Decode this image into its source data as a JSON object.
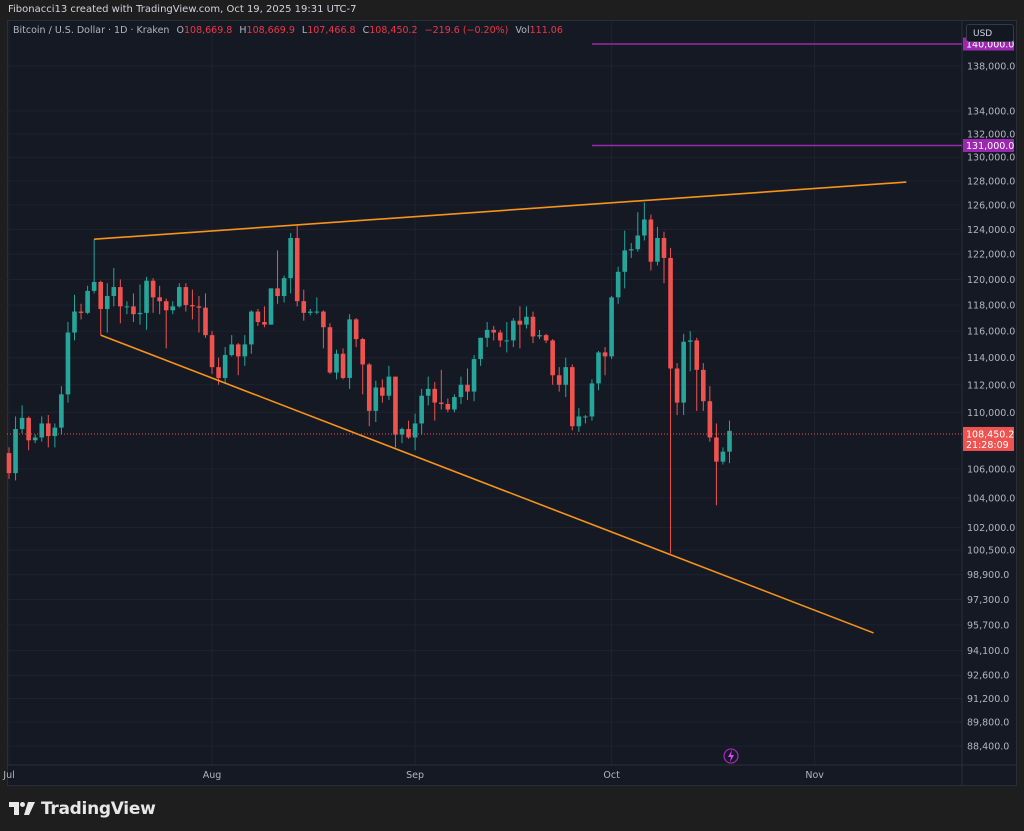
{
  "header": {
    "attribution": "Fibonacci13 created with TradingView.com, Oct 19, 2025 19:31 UTC-7"
  },
  "legend": {
    "symbol": "Bitcoin / U.S. Dollar · 1D · Kraken",
    "o_label": "O",
    "o": "108,669.8",
    "h_label": "H",
    "h": "108,669.9",
    "l_label": "L",
    "l": "107,466.8",
    "c_label": "C",
    "c": "108,450.2",
    "change": "−219.6 (−0.20%)",
    "vol_label": "Vol",
    "vol": "111.06"
  },
  "currency_button": "USD",
  "branding": {
    "logo_text": "TradingView"
  },
  "colors": {
    "up": "#26a69a",
    "down": "#ef5350",
    "trendline": "#f7931a",
    "level": "#9c27b0",
    "background": "#151924"
  },
  "chart_data": {
    "type": "candlestick",
    "title": "",
    "scale": "log",
    "grid": true,
    "ylim": [
      87600,
      140800
    ],
    "xlim": [
      "2025-06-30",
      "2025-11-24"
    ],
    "price_ticks": [
      "138,000.0",
      "134,000.0",
      "132,000.0",
      "130,000.0",
      "128,000.0",
      "126,000.0",
      "124,000.0",
      "122,000.0",
      "120,000.0",
      "118,000.0",
      "116,000.0",
      "114,000.0",
      "112,000.0",
      "110,000.0",
      "106,000.0",
      "104,000.0",
      "102,000.0",
      "100,500.0",
      "98,900.0",
      "97,300.0",
      "95,700.0",
      "94,100.0",
      "92,600.0",
      "91,200.0",
      "89,800.0",
      "88,400.0"
    ],
    "time_ticks": [
      {
        "label": "Jul",
        "date": "2025-07-01"
      },
      {
        "label": "Aug",
        "date": "2025-08-01"
      },
      {
        "label": "Sep",
        "date": "2025-09-01"
      },
      {
        "label": "Oct",
        "date": "2025-10-01"
      },
      {
        "label": "Nov",
        "date": "2025-11-01"
      }
    ],
    "last_price": {
      "value": 108450.2,
      "label": "108,450.2",
      "countdown": "21:28:09"
    },
    "horizontal_levels": [
      {
        "value": 140000,
        "label": "140,000.0",
        "from": "2025-09-28"
      },
      {
        "value": 131000,
        "label": "131,000.0",
        "from": "2025-09-28"
      }
    ],
    "trendlines": [
      {
        "from": {
          "date": "2025-07-14",
          "price": 123200
        },
        "to": {
          "date": "2025-11-15",
          "price": 127900
        }
      },
      {
        "from": {
          "date": "2025-07-15",
          "price": 115700
        },
        "to": {
          "date": "2025-11-10",
          "price": 95200
        }
      }
    ],
    "candles": [
      [
        "2025-07-01",
        107100,
        107500,
        105300,
        105700
      ],
      [
        "2025-07-02",
        105700,
        109700,
        105200,
        108800
      ],
      [
        "2025-07-03",
        108800,
        110500,
        108500,
        109600
      ],
      [
        "2025-07-04",
        109600,
        109700,
        107300,
        108000
      ],
      [
        "2025-07-05",
        108000,
        108400,
        107800,
        108200
      ],
      [
        "2025-07-06",
        108200,
        109700,
        107900,
        109200
      ],
      [
        "2025-07-07",
        109200,
        109800,
        107500,
        108300
      ],
      [
        "2025-07-08",
        108300,
        109200,
        107500,
        108900
      ],
      [
        "2025-07-09",
        108900,
        111900,
        108400,
        111300
      ],
      [
        "2025-07-10",
        111300,
        116700,
        110700,
        115900
      ],
      [
        "2025-07-11",
        115900,
        118800,
        115300,
        117500
      ],
      [
        "2025-07-12",
        117500,
        118100,
        116900,
        117400
      ],
      [
        "2025-07-13",
        117400,
        119500,
        117300,
        119100
      ],
      [
        "2025-07-14",
        119100,
        123200,
        118900,
        119800
      ],
      [
        "2025-07-15",
        119800,
        119900,
        115700,
        117700
      ],
      [
        "2025-07-16",
        117700,
        119700,
        115900,
        118700
      ],
      [
        "2025-07-17",
        118700,
        120900,
        117900,
        119400
      ],
      [
        "2025-07-18",
        119400,
        120000,
        116600,
        117900
      ],
      [
        "2025-07-19",
        117900,
        118300,
        117300,
        117900
      ],
      [
        "2025-07-20",
        117900,
        118900,
        116700,
        117300
      ],
      [
        "2025-07-21",
        117300,
        119600,
        116500,
        117400
      ],
      [
        "2025-07-22",
        117400,
        120200,
        116100,
        119900
      ],
      [
        "2025-07-23",
        119900,
        120100,
        117400,
        118600
      ],
      [
        "2025-07-24",
        118600,
        119500,
        117300,
        118300
      ],
      [
        "2025-07-25",
        118300,
        118500,
        114700,
        117600
      ],
      [
        "2025-07-26",
        117600,
        118300,
        117300,
        117900
      ],
      [
        "2025-07-27",
        117900,
        119700,
        117800,
        119400
      ],
      [
        "2025-07-28",
        119400,
        119700,
        117500,
        118000
      ],
      [
        "2025-07-29",
        118000,
        119200,
        116900,
        117900
      ],
      [
        "2025-07-30",
        117900,
        118700,
        115900,
        117800
      ],
      [
        "2025-07-31",
        117800,
        118900,
        115500,
        115700
      ],
      [
        "2025-08-01",
        115700,
        116000,
        112800,
        113300
      ],
      [
        "2025-08-02",
        113300,
        114000,
        112000,
        112500
      ],
      [
        "2025-08-03",
        112500,
        114800,
        112100,
        114200
      ],
      [
        "2025-08-04",
        114200,
        115700,
        114100,
        115000
      ],
      [
        "2025-08-05",
        115000,
        115100,
        112700,
        114100
      ],
      [
        "2025-08-06",
        114100,
        115700,
        113400,
        115000
      ],
      [
        "2025-08-07",
        115000,
        117600,
        114300,
        117500
      ],
      [
        "2025-08-08",
        117500,
        117700,
        116400,
        116700
      ],
      [
        "2025-08-09",
        116700,
        117900,
        116300,
        116500
      ],
      [
        "2025-08-10",
        116500,
        119300,
        116500,
        119300
      ],
      [
        "2025-08-11",
        119300,
        122300,
        118100,
        118700
      ],
      [
        "2025-08-12",
        118700,
        120300,
        118200,
        120100
      ],
      [
        "2025-08-13",
        120100,
        123700,
        118900,
        123300
      ],
      [
        "2025-08-14",
        123300,
        124300,
        117900,
        118300
      ],
      [
        "2025-08-15",
        118300,
        119200,
        116800,
        117400
      ],
      [
        "2025-08-16",
        117400,
        117700,
        117200,
        117500
      ],
      [
        "2025-08-17",
        117500,
        118600,
        117300,
        117500
      ],
      [
        "2025-08-18",
        117500,
        117600,
        114700,
        116300
      ],
      [
        "2025-08-19",
        116300,
        116600,
        112800,
        112900
      ],
      [
        "2025-08-20",
        112900,
        114600,
        112400,
        114300
      ],
      [
        "2025-08-21",
        114300,
        114700,
        112400,
        112500
      ],
      [
        "2025-08-22",
        112500,
        117300,
        111700,
        116900
      ],
      [
        "2025-08-23",
        116900,
        117000,
        114800,
        115400
      ],
      [
        "2025-08-24",
        115400,
        115500,
        111300,
        113500
      ],
      [
        "2025-08-25",
        113500,
        113600,
        109000,
        110100
      ],
      [
        "2025-08-26",
        110100,
        112300,
        109300,
        111800
      ],
      [
        "2025-08-27",
        111800,
        112400,
        110700,
        111200
      ],
      [
        "2025-08-28",
        111200,
        113400,
        110900,
        112600
      ],
      [
        "2025-08-29",
        112600,
        112600,
        107500,
        108400
      ],
      [
        "2025-08-30",
        108400,
        108900,
        107800,
        108800
      ],
      [
        "2025-08-31",
        108800,
        109400,
        108100,
        108200
      ],
      [
        "2025-09-01",
        108200,
        109900,
        107300,
        109200
      ],
      [
        "2025-09-02",
        109200,
        111700,
        108400,
        111200
      ],
      [
        "2025-09-03",
        111200,
        112600,
        110500,
        111700
      ],
      [
        "2025-09-04",
        111700,
        112200,
        109400,
        110700
      ],
      [
        "2025-09-05",
        110700,
        113100,
        110200,
        110600
      ],
      [
        "2025-09-06",
        110600,
        111000,
        110000,
        110200
      ],
      [
        "2025-09-07",
        110200,
        111300,
        110000,
        111100
      ],
      [
        "2025-09-08",
        111100,
        112600,
        110600,
        112000
      ],
      [
        "2025-09-09",
        112000,
        113200,
        110900,
        111500
      ],
      [
        "2025-09-10",
        111500,
        114200,
        110800,
        113900
      ],
      [
        "2025-09-11",
        113900,
        115500,
        113400,
        115500
      ],
      [
        "2025-09-12",
        115500,
        116700,
        114800,
        116100
      ],
      [
        "2025-09-13",
        116100,
        116400,
        115300,
        115900
      ],
      [
        "2025-09-14",
        115900,
        116100,
        114800,
        115300
      ],
      [
        "2025-09-15",
        115300,
        116700,
        114400,
        115300
      ],
      [
        "2025-09-16",
        115300,
        117000,
        114800,
        116800
      ],
      [
        "2025-09-17",
        116800,
        117900,
        114700,
        116500
      ],
      [
        "2025-09-18",
        116500,
        117900,
        116200,
        117100
      ],
      [
        "2025-09-19",
        117100,
        117500,
        115100,
        115600
      ],
      [
        "2025-09-20",
        115600,
        116100,
        115400,
        115700
      ],
      [
        "2025-09-21",
        115700,
        115800,
        115100,
        115300
      ],
      [
        "2025-09-22",
        115300,
        115400,
        112000,
        112700
      ],
      [
        "2025-09-23",
        112700,
        113300,
        111500,
        112000
      ],
      [
        "2025-09-24",
        112000,
        114000,
        111100,
        113300
      ],
      [
        "2025-09-25",
        113300,
        113500,
        108700,
        109000
      ],
      [
        "2025-09-26",
        109000,
        110300,
        108600,
        109700
      ],
      [
        "2025-09-27",
        109700,
        109800,
        109200,
        109700
      ],
      [
        "2025-09-28",
        109700,
        112400,
        109400,
        112100
      ],
      [
        "2025-09-29",
        112100,
        114500,
        111600,
        114400
      ],
      [
        "2025-09-30",
        114400,
        114800,
        112700,
        114100
      ],
      [
        "2025-10-01",
        114100,
        118700,
        113900,
        118600
      ],
      [
        "2025-10-02",
        118600,
        121000,
        118100,
        120600
      ],
      [
        "2025-10-03",
        120600,
        123900,
        119300,
        122300
      ],
      [
        "2025-10-04",
        122300,
        122900,
        121700,
        122400
      ],
      [
        "2025-10-05",
        122400,
        125400,
        122200,
        123500
      ],
      [
        "2025-10-06",
        123500,
        126200,
        123100,
        124800
      ],
      [
        "2025-10-07",
        124800,
        125200,
        120700,
        121400
      ],
      [
        "2025-10-08",
        121400,
        124200,
        121100,
        123300
      ],
      [
        "2025-10-09",
        123300,
        123800,
        119700,
        121700
      ],
      [
        "2025-10-10",
        121700,
        122500,
        100300,
        113200
      ],
      [
        "2025-10-11",
        113200,
        113600,
        109800,
        110700
      ],
      [
        "2025-10-12",
        110700,
        115800,
        109800,
        115200
      ],
      [
        "2025-10-13",
        115200,
        116000,
        113000,
        115300
      ],
      [
        "2025-10-14",
        115300,
        115500,
        110100,
        113100
      ],
      [
        "2025-10-15",
        113100,
        113600,
        110100,
        110800
      ],
      [
        "2025-10-16",
        110800,
        111900,
        107900,
        108200
      ],
      [
        "2025-10-17",
        108200,
        109200,
        103500,
        106500
      ],
      [
        "2025-10-18",
        106500,
        107500,
        106300,
        107200
      ],
      [
        "2025-10-19",
        107200,
        109400,
        106400,
        108669.8
      ]
    ]
  }
}
